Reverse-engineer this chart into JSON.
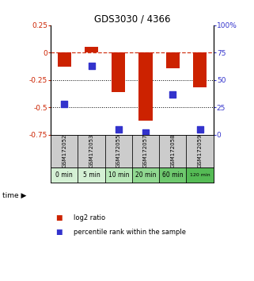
{
  "title": "GDS3030 / 4366",
  "categories": [
    "GSM172052",
    "GSM172053",
    "GSM172055",
    "GSM172057",
    "GSM172058",
    "GSM172059"
  ],
  "time_labels": [
    "0 min",
    "5 min",
    "10 min",
    "20 min",
    "60 min",
    "120 min"
  ],
  "log2_values": [
    -0.13,
    0.05,
    -0.36,
    -0.62,
    -0.14,
    -0.32
  ],
  "percentile_values": [
    28,
    63,
    5,
    2,
    37,
    5
  ],
  "ylim_left": [
    -0.75,
    0.25
  ],
  "ylim_right": [
    0,
    100
  ],
  "yticks_left": [
    0.25,
    0,
    -0.25,
    -0.5,
    -0.75
  ],
  "yticks_right": [
    100,
    75,
    50,
    25,
    0
  ],
  "bar_color": "#cc2200",
  "dot_color": "#3333cc",
  "bar_width": 0.5,
  "dot_size": 30,
  "time_bg_colors": [
    "#d4f0d4",
    "#d4f0d4",
    "#b8e8b8",
    "#90d890",
    "#6ec86e",
    "#55bb55"
  ],
  "sample_bg_color": "#cccccc",
  "legend_items": [
    "log2 ratio",
    "percentile rank within the sample"
  ],
  "legend_colors": [
    "#cc2200",
    "#3333cc"
  ]
}
